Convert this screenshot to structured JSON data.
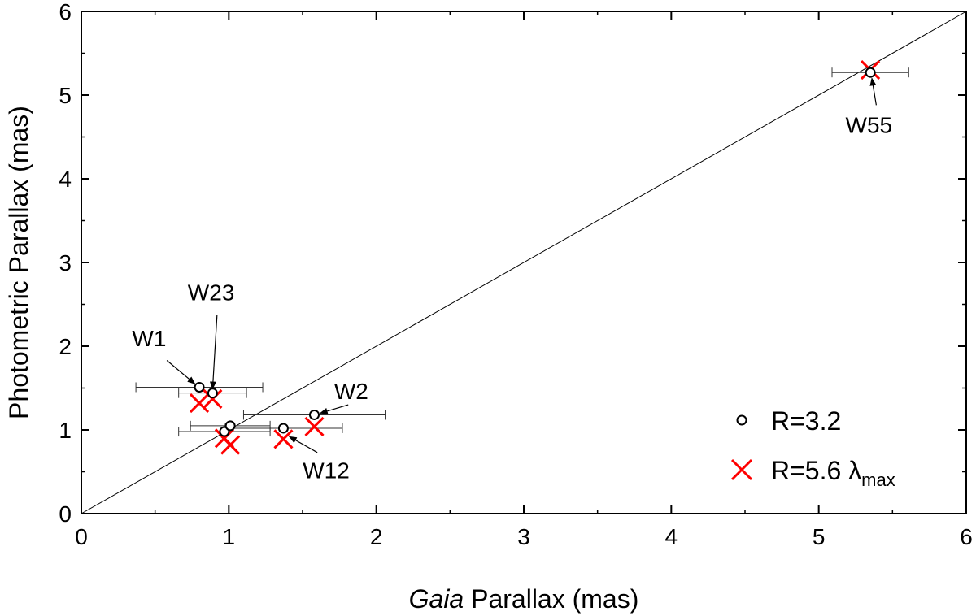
{
  "chart_data": {
    "type": "scatter",
    "xlabel_italic": "Gaia",
    "xlabel_rest": " Parallax (mas)",
    "ylabel": "Photometric Parallax (mas)",
    "xlim": [
      0,
      6
    ],
    "ylim": [
      0,
      6
    ],
    "xticks": [
      0,
      1,
      2,
      3,
      4,
      5,
      6
    ],
    "yticks": [
      0,
      1,
      2,
      3,
      4,
      5,
      6
    ],
    "reference_line": [
      [
        0,
        0
      ],
      [
        6,
        6
      ]
    ],
    "grid": false,
    "legend_position": "bottom-right",
    "series": [
      {
        "name": "R=3.2",
        "marker": "circle",
        "color": "#000000",
        "points": [
          {
            "x": 0.8,
            "y": 1.51,
            "xerr": 0.43
          },
          {
            "x": 0.89,
            "y": 1.44,
            "xerr": 0.23
          },
          {
            "x": 0.97,
            "y": 0.98,
            "xerr": 0.31
          },
          {
            "x": 1.01,
            "y": 1.05,
            "xerr": 0.27
          },
          {
            "x": 1.37,
            "y": 1.02,
            "xerr": 0.4
          },
          {
            "x": 1.58,
            "y": 1.18,
            "xerr": 0.48
          },
          {
            "x": 5.35,
            "y": 5.27,
            "xerr": 0.26
          }
        ]
      },
      {
        "name": "R=5.6 ",
        "name_symbol": "λ",
        "name_subscript": "max",
        "marker": "x",
        "color": "#ff0000",
        "points": [
          {
            "x": 0.8,
            "y": 1.32
          },
          {
            "x": 0.89,
            "y": 1.37
          },
          {
            "x": 0.97,
            "y": 0.9
          },
          {
            "x": 1.01,
            "y": 0.82
          },
          {
            "x": 1.37,
            "y": 0.89
          },
          {
            "x": 1.58,
            "y": 1.04
          },
          {
            "x": 5.35,
            "y": 5.3
          }
        ]
      }
    ],
    "annotations": [
      {
        "label": "W1",
        "text_at": [
          0.46,
          2.0
        ],
        "arrow_from": [
          0.58,
          1.83
        ],
        "arrow_to": [
          0.77,
          1.55
        ]
      },
      {
        "label": "W23",
        "text_at": [
          0.88,
          2.55
        ],
        "arrow_from": [
          0.92,
          2.37
        ],
        "arrow_to": [
          0.89,
          1.49
        ]
      },
      {
        "label": "W2",
        "text_at": [
          1.83,
          1.37
        ],
        "arrow_from": [
          1.81,
          1.3
        ],
        "arrow_to": [
          1.62,
          1.2
        ]
      },
      {
        "label": "W12",
        "text_at": [
          1.66,
          0.42
        ],
        "arrow_from": [
          1.6,
          0.73
        ],
        "arrow_to": [
          1.41,
          0.92
        ]
      },
      {
        "label": "W55",
        "text_at": [
          5.34,
          4.55
        ],
        "arrow_from": [
          5.39,
          4.88
        ],
        "arrow_to": [
          5.36,
          5.2
        ]
      }
    ]
  }
}
